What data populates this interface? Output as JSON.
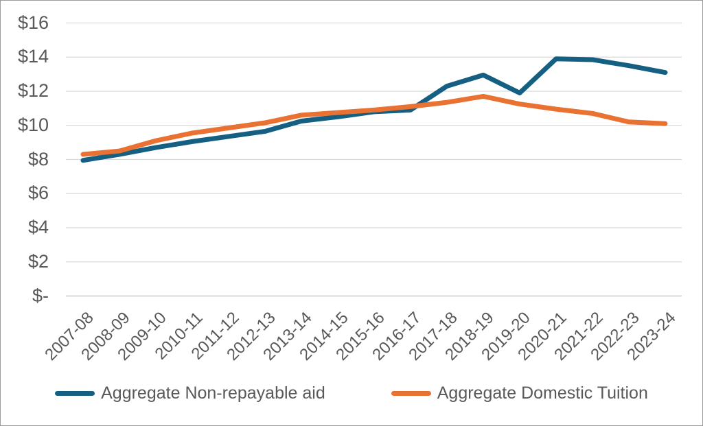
{
  "chart_data": {
    "type": "line",
    "title": "",
    "categories": [
      "2007-08",
      "2008-09",
      "2009-10",
      "2010-11",
      "2011-12",
      "2012-13",
      "2013-14",
      "2014-15",
      "2015-16",
      "2016-17",
      "2017-18",
      "2018-19",
      "2019-20",
      "2020-21",
      "2021-22",
      "2022-23",
      "2023-24"
    ],
    "series": [
      {
        "name": "Aggregate Non-repayable aid",
        "color": "#156082",
        "values": [
          7.95,
          8.3,
          8.7,
          9.05,
          9.35,
          9.65,
          10.25,
          10.5,
          10.8,
          10.9,
          12.3,
          12.95,
          11.9,
          13.9,
          13.85,
          13.5,
          13.1
        ]
      },
      {
        "name": "Aggregate Domestic Tuition",
        "color": "#E97132",
        "values": [
          8.3,
          8.5,
          9.1,
          9.55,
          9.85,
          10.15,
          10.6,
          10.75,
          10.9,
          11.1,
          11.35,
          11.7,
          11.25,
          10.95,
          10.7,
          10.2,
          10.1
        ]
      }
    ],
    "y_axis": {
      "min": 0,
      "max": 16,
      "step": 2,
      "tick_labels": [
        "$-",
        "$2",
        "$4",
        "$6",
        "$8",
        "$10",
        "$12",
        "$14",
        "$16"
      ]
    },
    "x_axis": {
      "label_rotation_deg": -45
    },
    "grid": true,
    "legend_position": "bottom"
  },
  "colors": {
    "gridline": "#D9D9D9",
    "axis_line": "#BFBFBF",
    "axis_text": "#595959",
    "border": "#9B9B9B",
    "background": "#FFFFFF"
  }
}
